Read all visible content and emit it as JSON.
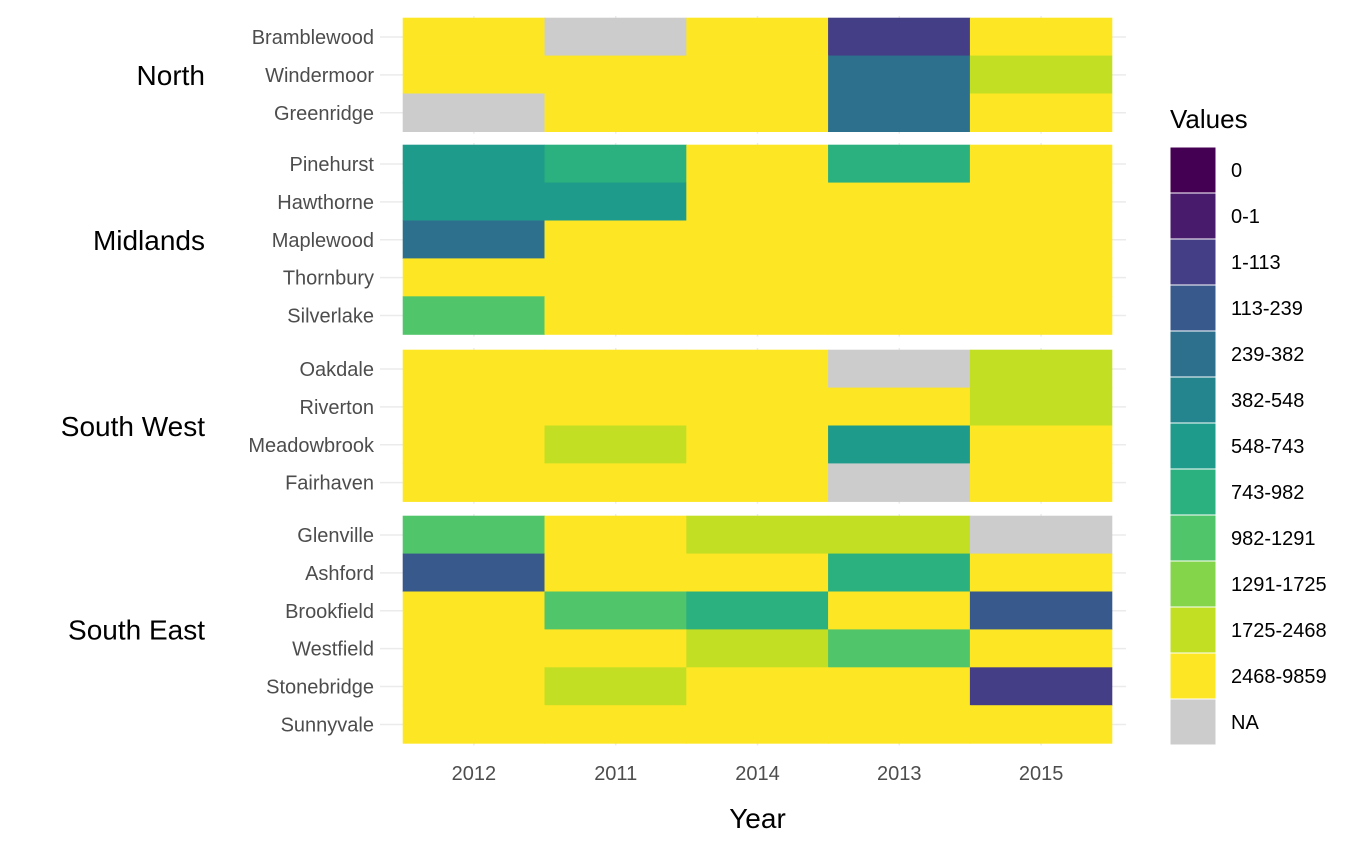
{
  "chart_data": {
    "type": "heatmap",
    "xlabel": "Year",
    "legend_title": "Values",
    "legend_position": "right",
    "grid": true,
    "x_categories": [
      "2012",
      "2011",
      "2014",
      "2013",
      "2015"
    ],
    "legend": [
      {
        "label": "0",
        "color": "#440154"
      },
      {
        "label": "0-1",
        "color": "#481b6d"
      },
      {
        "label": "1-113",
        "color": "#433e85"
      },
      {
        "label": "113-239",
        "color": "#38598c"
      },
      {
        "label": "239-382",
        "color": "#2d708e"
      },
      {
        "label": "382-548",
        "color": "#25858e"
      },
      {
        "label": "548-743",
        "color": "#1e9b8a"
      },
      {
        "label": "743-982",
        "color": "#2bb07f"
      },
      {
        "label": "982-1291",
        "color": "#51c56a"
      },
      {
        "label": "1291-1725",
        "color": "#85d54a"
      },
      {
        "label": "1725-2468",
        "color": "#c2df23"
      },
      {
        "label": "2468-9859",
        "color": "#fde725"
      },
      {
        "label": "NA",
        "color": "#cccccc"
      }
    ],
    "groups": [
      {
        "name": "North",
        "rows": [
          {
            "label": "Bramblewood",
            "values": [
              "2468-9859",
              "NA",
              "2468-9859",
              "1-113",
              "2468-9859"
            ]
          },
          {
            "label": "Windermoor",
            "values": [
              "2468-9859",
              "2468-9859",
              "2468-9859",
              "239-382",
              "1725-2468"
            ]
          },
          {
            "label": "Greenridge",
            "values": [
              "NA",
              "2468-9859",
              "2468-9859",
              "239-382",
              "2468-9859"
            ]
          }
        ]
      },
      {
        "name": "Midlands",
        "rows": [
          {
            "label": "Pinehurst",
            "values": [
              "548-743",
              "743-982",
              "2468-9859",
              "743-982",
              "2468-9859"
            ]
          },
          {
            "label": "Hawthorne",
            "values": [
              "548-743",
              "548-743",
              "2468-9859",
              "2468-9859",
              "2468-9859"
            ]
          },
          {
            "label": "Maplewood",
            "values": [
              "239-382",
              "2468-9859",
              "2468-9859",
              "2468-9859",
              "2468-9859"
            ]
          },
          {
            "label": "Thornbury",
            "values": [
              "2468-9859",
              "2468-9859",
              "2468-9859",
              "2468-9859",
              "2468-9859"
            ]
          },
          {
            "label": "Silverlake",
            "values": [
              "982-1291",
              "2468-9859",
              "2468-9859",
              "2468-9859",
              "2468-9859"
            ]
          }
        ]
      },
      {
        "name": "South West",
        "rows": [
          {
            "label": "Oakdale",
            "values": [
              "2468-9859",
              "2468-9859",
              "2468-9859",
              "NA",
              "1725-2468"
            ]
          },
          {
            "label": "Riverton",
            "values": [
              "2468-9859",
              "2468-9859",
              "2468-9859",
              "2468-9859",
              "1725-2468"
            ]
          },
          {
            "label": "Meadowbrook",
            "values": [
              "2468-9859",
              "1725-2468",
              "2468-9859",
              "548-743",
              "2468-9859"
            ]
          },
          {
            "label": "Fairhaven",
            "values": [
              "2468-9859",
              "2468-9859",
              "2468-9859",
              "NA",
              "2468-9859"
            ]
          }
        ]
      },
      {
        "name": "South East",
        "rows": [
          {
            "label": "Glenville",
            "values": [
              "982-1291",
              "2468-9859",
              "1725-2468",
              "1725-2468",
              "NA"
            ]
          },
          {
            "label": "Ashford",
            "values": [
              "113-239",
              "2468-9859",
              "2468-9859",
              "743-982",
              "2468-9859"
            ]
          },
          {
            "label": "Brookfield",
            "values": [
              "2468-9859",
              "982-1291",
              "743-982",
              "2468-9859",
              "113-239"
            ]
          },
          {
            "label": "Westfield",
            "values": [
              "2468-9859",
              "2468-9859",
              "1725-2468",
              "982-1291",
              "2468-9859"
            ]
          },
          {
            "label": "Stonebridge",
            "values": [
              "2468-9859",
              "1725-2468",
              "2468-9859",
              "2468-9859",
              "1-113"
            ]
          },
          {
            "label": "Sunnyvale",
            "values": [
              "2468-9859",
              "2468-9859",
              "2468-9859",
              "2468-9859",
              "2468-9859"
            ]
          }
        ]
      }
    ]
  }
}
